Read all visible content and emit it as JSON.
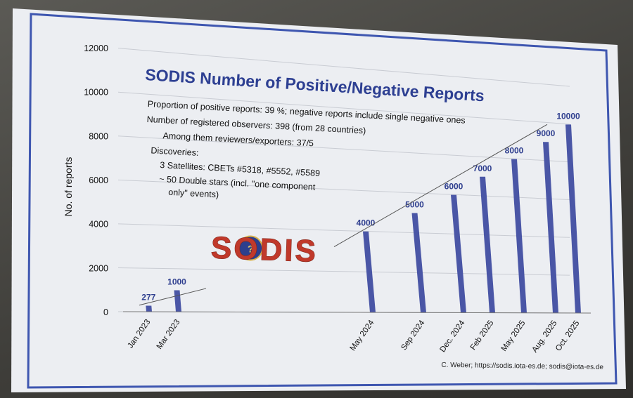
{
  "slide": {
    "title": "SODIS Number of Positive/Negative Reports",
    "lines": [
      "Proportion of positive reports:  39 %; negative reports include single negative ones",
      "Number of registered observers: 398 (from 28 countries)",
      "Among them reviewers/exporters: 37/5",
      "Discoveries:",
      "3 Satellites:  CBETs #5318, #5552, #5589",
      "~ 50 Double stars (incl. \"one component",
      "only\" events)"
    ],
    "logo": "SODIS",
    "footer": "C. Weber; https://sodis.iota-es.de; sodis@iota-es.de"
  },
  "colors": {
    "bar": "#4a56a6",
    "label": "#2f3f8f",
    "title": "#2d3f92",
    "frame": "#3e56b0",
    "logo_red": "#c0392b"
  },
  "chart_data": {
    "type": "bar",
    "ylabel": "No. of reports",
    "xlabel": "",
    "ylim": [
      0,
      12000
    ],
    "yticks": [
      0,
      2000,
      4000,
      6000,
      8000,
      10000,
      12000
    ],
    "categories": [
      "Jan 2023",
      "Mar 2023",
      "May 2024",
      "Sep 2024",
      "Dec. 2024",
      "Feb 2025",
      "May 2025",
      "Aug. 2025",
      "Oct. 2025"
    ],
    "values": [
      277,
      1000,
      4000,
      5000,
      6000,
      7000,
      8000,
      9000,
      10000
    ],
    "data_labels": [
      "277",
      "1000",
      "4000",
      "5000",
      "6000",
      "7000",
      "8000",
      "9000",
      "10000"
    ],
    "trendline": true,
    "grid": true
  }
}
